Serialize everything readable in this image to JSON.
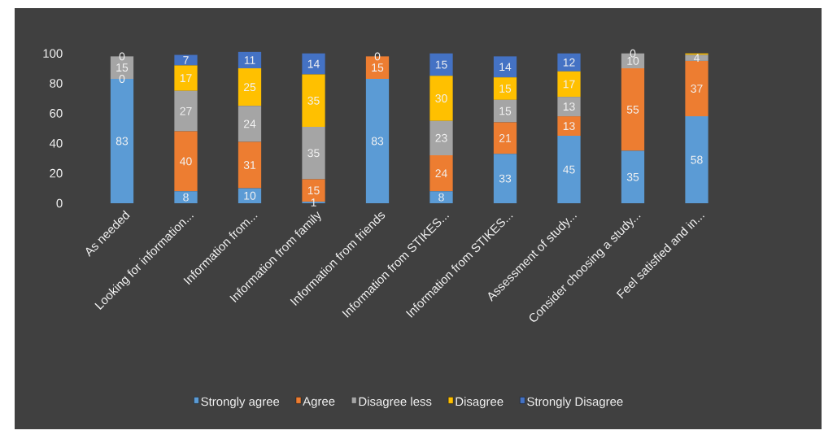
{
  "chart_data": {
    "type": "bar",
    "stacked": true,
    "legend": "bottom",
    "categories": [
      "As needed",
      "Looking for information...",
      "Information from...",
      "Information from family",
      "Information from friends",
      "Information from STIKES...",
      "Information from STIKES...",
      "Assessment of study...",
      "Consider choosing a study...",
      "Feel satisfied and in..."
    ],
    "series": [
      {
        "name": "Strongly agree",
        "color": "#5b9bd5",
        "values": [
          83,
          8,
          10,
          1,
          83,
          8,
          33,
          45,
          35,
          58
        ],
        "value_labels": [
          "83",
          "8",
          "10",
          "1",
          "83",
          "8",
          "33",
          "45",
          "35",
          "58"
        ]
      },
      {
        "name": "Agree",
        "color": "#ed7d31",
        "values": [
          0,
          40,
          31,
          15,
          15,
          24,
          21,
          13,
          55,
          37
        ],
        "value_labels": [
          "0",
          "40",
          "31",
          "15",
          "15",
          "24",
          "21",
          "13",
          "55",
          "37"
        ]
      },
      {
        "name": "Disagree less",
        "color": "#a5a5a5",
        "values": [
          15,
          27,
          24,
          35,
          0,
          23,
          15,
          13,
          10,
          4
        ],
        "value_labels": [
          "15",
          "27",
          "24",
          "35",
          null,
          "23",
          "15",
          "13",
          "10",
          "4"
        ]
      },
      {
        "name": "Disagree",
        "color": "#ffc000",
        "values": [
          0,
          17,
          25,
          35,
          0,
          30,
          15,
          17,
          0,
          1
        ],
        "value_labels": [
          null,
          "17",
          "25",
          "35",
          null,
          "30",
          "15",
          "17",
          null,
          null
        ]
      },
      {
        "name": "Strongly Disagree",
        "color": "#4472c4",
        "values": [
          0,
          7,
          11,
          14,
          0,
          15,
          14,
          12,
          0,
          0
        ],
        "value_labels": [
          "0",
          "7",
          "11",
          "14",
          "0",
          "15",
          "14",
          "12",
          "0",
          null
        ]
      }
    ],
    "ylim": [
      0,
      102
    ],
    "yticks": [
      0,
      20,
      40,
      60,
      80,
      100
    ]
  }
}
